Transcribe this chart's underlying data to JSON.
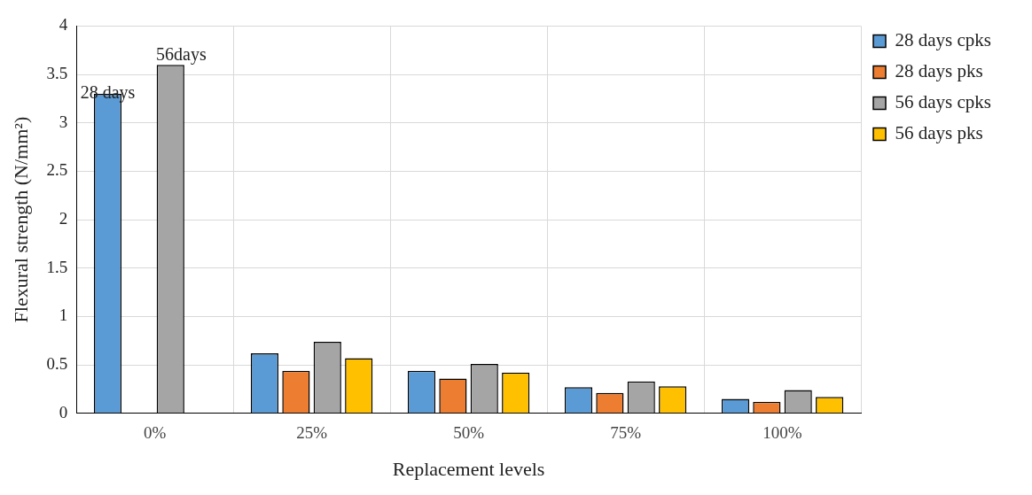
{
  "chart_data": {
    "type": "bar",
    "xlabel": "Replacement levels",
    "ylabel": "Flexural strength (N/mm²)",
    "categories": [
      "0%",
      "25%",
      "50%",
      "75%",
      "100%"
    ],
    "series": [
      {
        "name": "28 days cpks",
        "color": "#5b9bd5",
        "values": [
          3.3,
          0.62,
          0.44,
          0.27,
          0.15
        ]
      },
      {
        "name": "28 days pks",
        "color": "#ed7d31",
        "values": [
          null,
          0.44,
          0.36,
          0.21,
          0.12
        ]
      },
      {
        "name": "56 days cpks",
        "color": "#a5a5a5",
        "values": [
          3.6,
          0.74,
          0.51,
          0.33,
          0.24
        ]
      },
      {
        "name": "56 days pks",
        "color": "#ffc000",
        "values": [
          null,
          0.57,
          0.42,
          0.28,
          0.17
        ]
      }
    ],
    "ylim": [
      0,
      4
    ],
    "yticks": [
      0,
      0.5,
      1,
      1.5,
      2,
      2.5,
      3,
      3.5,
      4
    ],
    "grid": true,
    "legend": "top right",
    "annotations": [
      {
        "text": "28 days",
        "x": "0%",
        "y": 3.3
      },
      {
        "text": "56days",
        "x": "0%",
        "y": 3.6
      }
    ]
  }
}
